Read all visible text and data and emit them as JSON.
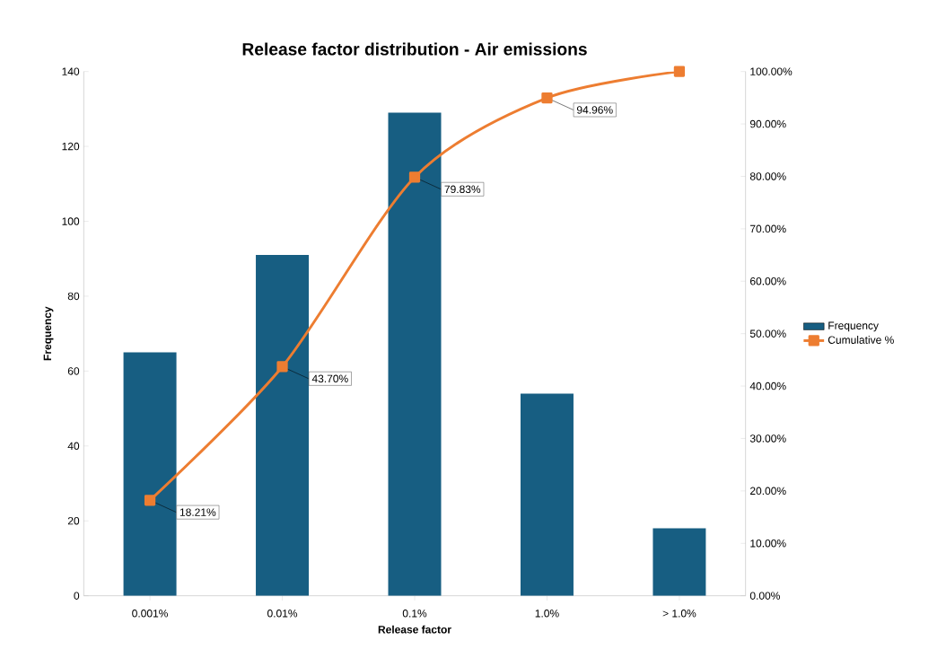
{
  "chart_data": {
    "type": "bar",
    "title": "Release factor distribution - Air emissions",
    "xlabel": "Release factor",
    "ylabel": "Frequency",
    "categories": [
      "0.001%",
      "0.01%",
      "0.1%",
      "1.0%",
      "> 1.0%"
    ],
    "series": [
      {
        "name": "Frequency",
        "color": "#175e82",
        "values": [
          65,
          91,
          129,
          54,
          18
        ]
      },
      {
        "name": "Cumulative %",
        "type": "line",
        "axis": "y2",
        "color": "#ed7d31",
        "marker": "square",
        "line_style": "solid",
        "values": [
          18.21,
          43.7,
          79.83,
          94.96,
          100
        ],
        "value_labels": [
          "18.21%",
          "43.70%",
          "79.83%",
          "94.96%",
          null
        ]
      }
    ],
    "ylim": [
      0,
      140
    ],
    "yticks": [
      0,
      20,
      40,
      60,
      80,
      100,
      120,
      140
    ],
    "y2lim": [
      0,
      100
    ],
    "y2ticks": [
      {
        "value": 0,
        "label": "0.00%"
      },
      {
        "value": 10,
        "label": "10.00%"
      },
      {
        "value": 20,
        "label": "20.00%"
      },
      {
        "value": 30,
        "label": "30.00%"
      },
      {
        "value": 40,
        "label": "40.00%"
      },
      {
        "value": 50,
        "label": "50.00%"
      },
      {
        "value": 60,
        "label": "60.00%"
      },
      {
        "value": 70,
        "label": "70.00%"
      },
      {
        "value": 80,
        "label": "80.00%"
      },
      {
        "value": 90,
        "label": "90.00%"
      },
      {
        "value": 100,
        "label": "100.00%"
      }
    ],
    "grid": false,
    "legend": "right"
  }
}
